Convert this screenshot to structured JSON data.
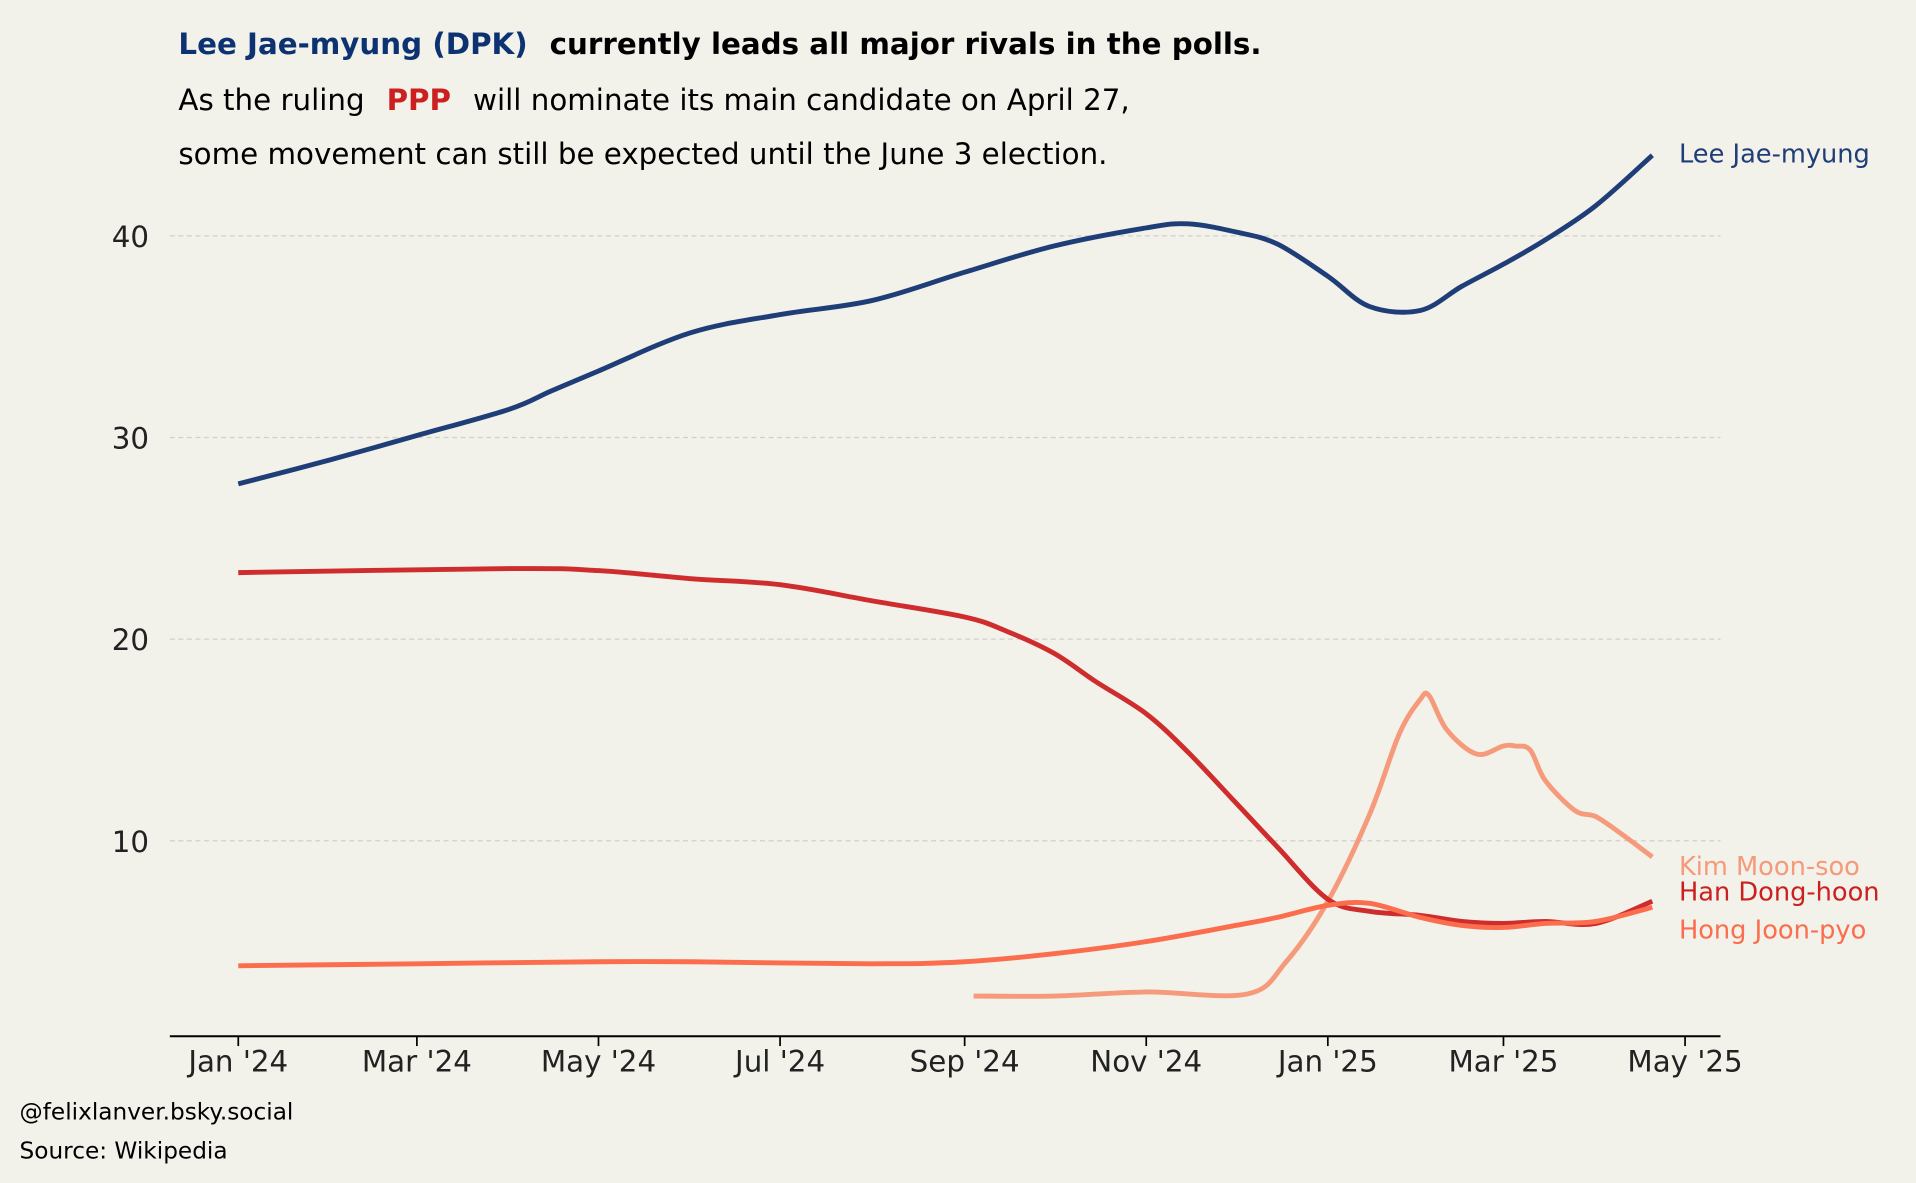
{
  "chart_data": {
    "type": "line",
    "title": {
      "highlight": "Lee Jae-myung (DPK)",
      "rest": "currently leads all major rivals in the polls."
    },
    "subtitle": {
      "line1_pre": "As the ruling",
      "line1_highlight": "PPP",
      "line1_post": "will nominate its main candidate on April 27,",
      "line2": "some movement can still be expected until the June 3 election."
    },
    "colors": {
      "dpk": "#1f3e78",
      "ppp": "#cc1f1f",
      "title_dpk": "#0d3272"
    },
    "x_ticks": [
      {
        "date": "2024-01-01",
        "label": "Jan '24"
      },
      {
        "date": "2024-03-01",
        "label": "Mar '24"
      },
      {
        "date": "2024-05-01",
        "label": "May '24"
      },
      {
        "date": "2024-07-01",
        "label": "Jul '24"
      },
      {
        "date": "2024-09-01",
        "label": "Sep '24"
      },
      {
        "date": "2024-11-01",
        "label": "Nov '24"
      },
      {
        "date": "2025-01-01",
        "label": "Jan '25"
      },
      {
        "date": "2025-03-01",
        "label": "Mar '25"
      },
      {
        "date": "2025-05-01",
        "label": "May '25"
      }
    ],
    "y_ticks": [
      10,
      20,
      30,
      40
    ],
    "xlim": [
      "2023-12-08",
      "2025-05-13"
    ],
    "ylim": [
      0.3,
      45
    ],
    "grid": "horizontal dashed",
    "legend": "direct labels at line ends (right)",
    "series": [
      {
        "name": "Lee Jae-myung",
        "color": "#1f3e78",
        "label_color": "#1f3e78",
        "points": [
          [
            "2024-01-01",
            27.7
          ],
          [
            "2024-02-01",
            28.9
          ],
          [
            "2024-03-01",
            30.1
          ],
          [
            "2024-04-01",
            31.4
          ],
          [
            "2024-04-15",
            32.3
          ],
          [
            "2024-05-01",
            33.3
          ],
          [
            "2024-06-01",
            35.2
          ],
          [
            "2024-07-01",
            36.1
          ],
          [
            "2024-08-01",
            36.8
          ],
          [
            "2024-09-01",
            38.2
          ],
          [
            "2024-10-01",
            39.5
          ],
          [
            "2024-11-01",
            40.4
          ],
          [
            "2024-11-15",
            40.6
          ],
          [
            "2024-12-01",
            40.2
          ],
          [
            "2024-12-15",
            39.6
          ],
          [
            "2025-01-01",
            38.0
          ],
          [
            "2025-01-15",
            36.5
          ],
          [
            "2025-02-01",
            36.3
          ],
          [
            "2025-02-15",
            37.5
          ],
          [
            "2025-03-01",
            38.6
          ],
          [
            "2025-03-15",
            39.8
          ],
          [
            "2025-04-01",
            41.5
          ],
          [
            "2025-04-20",
            44.0
          ]
        ]
      },
      {
        "name": "Kim Moon-soo",
        "color": "#f59a7b",
        "label_color": "#f59a7b",
        "points": [
          [
            "2024-09-04",
            2.3
          ],
          [
            "2024-10-01",
            2.3
          ],
          [
            "2024-11-01",
            2.5
          ],
          [
            "2024-12-05",
            2.4
          ],
          [
            "2024-12-18",
            4.0
          ],
          [
            "2025-01-01",
            7.0
          ],
          [
            "2025-01-15",
            11.3
          ],
          [
            "2025-01-25",
            15.3
          ],
          [
            "2025-02-01",
            17.0
          ],
          [
            "2025-02-04",
            17.2
          ],
          [
            "2025-02-10",
            15.5
          ],
          [
            "2025-02-20",
            14.3
          ],
          [
            "2025-03-01",
            14.7
          ],
          [
            "2025-03-05",
            14.7
          ],
          [
            "2025-03-10",
            14.5
          ],
          [
            "2025-03-15",
            13.0
          ],
          [
            "2025-03-25",
            11.5
          ],
          [
            "2025-04-01",
            11.2
          ],
          [
            "2025-04-10",
            10.3
          ],
          [
            "2025-04-20",
            9.2
          ]
        ]
      },
      {
        "name": "Han Dong-hoon",
        "color": "#cf2d2d",
        "label_color": "#cc1f1f",
        "points": [
          [
            "2024-01-01",
            23.3
          ],
          [
            "2024-04-01",
            23.5
          ],
          [
            "2024-05-01",
            23.4
          ],
          [
            "2024-06-01",
            23.0
          ],
          [
            "2024-07-01",
            22.7
          ],
          [
            "2024-08-01",
            21.9
          ],
          [
            "2024-09-01",
            21.1
          ],
          [
            "2024-09-15",
            20.4
          ],
          [
            "2024-10-01",
            19.3
          ],
          [
            "2024-10-15",
            17.9
          ],
          [
            "2024-11-01",
            16.3
          ],
          [
            "2024-11-15",
            14.4
          ],
          [
            "2024-12-01",
            11.9
          ],
          [
            "2024-12-15",
            9.7
          ],
          [
            "2025-01-01",
            7.1
          ],
          [
            "2025-01-15",
            6.5
          ],
          [
            "2025-02-01",
            6.3
          ],
          [
            "2025-02-15",
            6.0
          ],
          [
            "2025-03-01",
            5.9
          ],
          [
            "2025-03-15",
            6.0
          ],
          [
            "2025-04-01",
            5.9
          ],
          [
            "2025-04-20",
            7.0
          ]
        ]
      },
      {
        "name": "Hong Joon-pyo",
        "color": "#fb6d4c",
        "label_color": "#fb6d4c",
        "points": [
          [
            "2024-01-01",
            3.8
          ],
          [
            "2024-03-01",
            3.9
          ],
          [
            "2024-05-01",
            4.0
          ],
          [
            "2024-06-01",
            4.0
          ],
          [
            "2024-08-01",
            3.9
          ],
          [
            "2024-09-01",
            4.0
          ],
          [
            "2024-10-01",
            4.4
          ],
          [
            "2024-11-01",
            5.0
          ],
          [
            "2024-12-01",
            5.8
          ],
          [
            "2024-12-15",
            6.2
          ],
          [
            "2025-01-01",
            6.8
          ],
          [
            "2025-01-15",
            6.9
          ],
          [
            "2025-02-01",
            6.2
          ],
          [
            "2025-02-15",
            5.8
          ],
          [
            "2025-03-01",
            5.7
          ],
          [
            "2025-03-15",
            5.9
          ],
          [
            "2025-04-01",
            6.0
          ],
          [
            "2025-04-20",
            6.7
          ]
        ]
      }
    ],
    "credit": "@felixlanver.bsky.social",
    "source": "Source: Wikipedia"
  }
}
